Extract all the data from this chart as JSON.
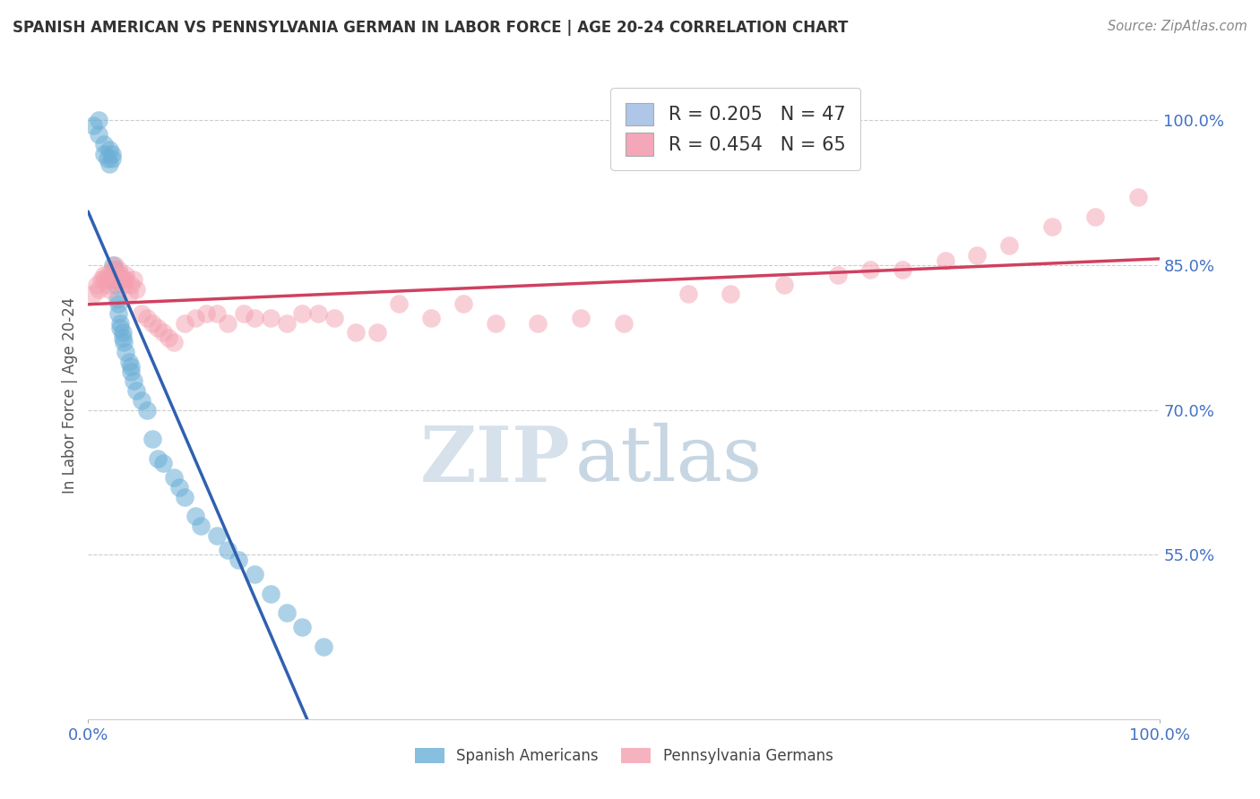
{
  "title": "SPANISH AMERICAN VS PENNSYLVANIA GERMAN IN LABOR FORCE | AGE 20-24 CORRELATION CHART",
  "source": "Source: ZipAtlas.com",
  "ylabel": "In Labor Force | Age 20-24",
  "xlim": [
    0.0,
    1.0
  ],
  "ylim": [
    0.38,
    1.05
  ],
  "ytick_positions": [
    0.55,
    0.7,
    0.85,
    1.0
  ],
  "ytick_labels": [
    "55.0%",
    "70.0%",
    "85.0%",
    "100.0%"
  ],
  "legend_entries": [
    {
      "label": "R = 0.205   N = 47",
      "color": "#aec6e8"
    },
    {
      "label": "R = 0.454   N = 65",
      "color": "#f4a7b9"
    }
  ],
  "watermark_zip": "ZIP",
  "watermark_atlas": "atlas",
  "watermark_zip_color": "#c8d8e8",
  "watermark_atlas_color": "#b0c8e0",
  "blue_color": "#6BAED6",
  "pink_color": "#F4A0B0",
  "blue_line_color": "#3060B0",
  "pink_line_color": "#D04060",
  "grid_color": "#cccccc",
  "background_color": "#ffffff",
  "blue_x": [
    0.005,
    0.01,
    0.01,
    0.015,
    0.015,
    0.018,
    0.02,
    0.02,
    0.022,
    0.022,
    0.023,
    0.025,
    0.025,
    0.026,
    0.026,
    0.027,
    0.028,
    0.028,
    0.03,
    0.03,
    0.032,
    0.032,
    0.033,
    0.035,
    0.038,
    0.04,
    0.04,
    0.042,
    0.045,
    0.05,
    0.055,
    0.06,
    0.065,
    0.07,
    0.08,
    0.085,
    0.09,
    0.1,
    0.105,
    0.12,
    0.13,
    0.14,
    0.155,
    0.17,
    0.185,
    0.2,
    0.22
  ],
  "blue_y": [
    0.995,
    1.0,
    0.985,
    0.975,
    0.965,
    0.96,
    0.955,
    0.97,
    0.965,
    0.96,
    0.85,
    0.845,
    0.84,
    0.835,
    0.83,
    0.815,
    0.81,
    0.8,
    0.79,
    0.785,
    0.78,
    0.775,
    0.77,
    0.76,
    0.75,
    0.745,
    0.74,
    0.73,
    0.72,
    0.71,
    0.7,
    0.67,
    0.65,
    0.645,
    0.63,
    0.62,
    0.61,
    0.59,
    0.58,
    0.57,
    0.555,
    0.545,
    0.53,
    0.51,
    0.49,
    0.475,
    0.455
  ],
  "pink_x": [
    0.005,
    0.008,
    0.01,
    0.012,
    0.015,
    0.015,
    0.018,
    0.018,
    0.02,
    0.02,
    0.022,
    0.022,
    0.025,
    0.025,
    0.028,
    0.028,
    0.03,
    0.032,
    0.033,
    0.035,
    0.035,
    0.038,
    0.04,
    0.042,
    0.045,
    0.05,
    0.055,
    0.06,
    0.065,
    0.07,
    0.075,
    0.08,
    0.09,
    0.1,
    0.11,
    0.12,
    0.13,
    0.145,
    0.155,
    0.17,
    0.185,
    0.2,
    0.215,
    0.23,
    0.25,
    0.27,
    0.29,
    0.32,
    0.35,
    0.38,
    0.42,
    0.46,
    0.5,
    0.56,
    0.6,
    0.65,
    0.7,
    0.73,
    0.76,
    0.8,
    0.83,
    0.86,
    0.9,
    0.94,
    0.98
  ],
  "pink_y": [
    0.82,
    0.83,
    0.825,
    0.835,
    0.84,
    0.835,
    0.83,
    0.84,
    0.835,
    0.825,
    0.84,
    0.845,
    0.84,
    0.85,
    0.845,
    0.835,
    0.84,
    0.835,
    0.83,
    0.84,
    0.835,
    0.82,
    0.83,
    0.835,
    0.825,
    0.8,
    0.795,
    0.79,
    0.785,
    0.78,
    0.775,
    0.77,
    0.79,
    0.795,
    0.8,
    0.8,
    0.79,
    0.8,
    0.795,
    0.795,
    0.79,
    0.8,
    0.8,
    0.795,
    0.78,
    0.78,
    0.81,
    0.795,
    0.81,
    0.79,
    0.79,
    0.795,
    0.79,
    0.82,
    0.82,
    0.83,
    0.84,
    0.845,
    0.845,
    0.855,
    0.86,
    0.87,
    0.89,
    0.9,
    0.92
  ],
  "blue_line_start_x": 0.0,
  "blue_line_end_x": 0.22,
  "pink_line_start_x": 0.0,
  "pink_line_end_x": 1.0
}
